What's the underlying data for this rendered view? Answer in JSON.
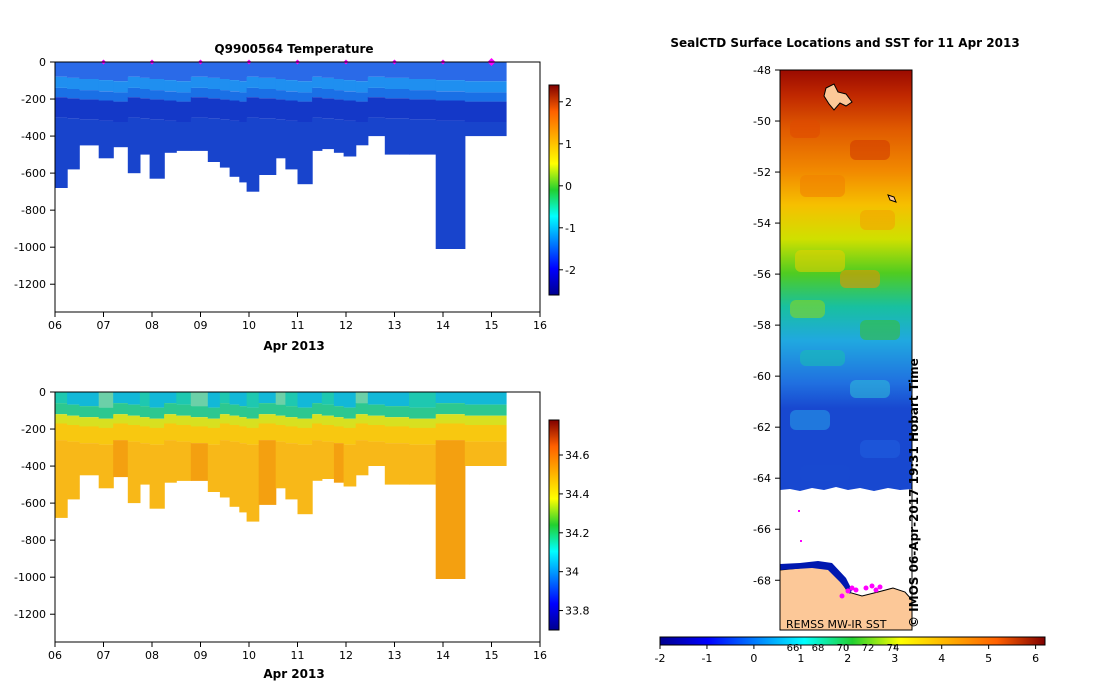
{
  "chart_data": [
    {
      "id": "temperature",
      "type": "heatmap",
      "title": "Q9900564  Temperature",
      "xlabel": "Apr 2013",
      "xlim": [
        6,
        16
      ],
      "x_ticks": [
        "06",
        "07",
        "08",
        "09",
        "10",
        "11",
        "12",
        "13",
        "14",
        "15",
        "16"
      ],
      "ylim": [
        -1350,
        0
      ],
      "y_ticks": [
        0,
        -200,
        -400,
        -600,
        -800,
        -1000,
        -1200
      ],
      "colorbar": {
        "min": -2.6,
        "max": 2.4,
        "ticks": [
          2,
          1,
          0,
          -1,
          -2
        ],
        "colormap": "jet"
      },
      "markers_x": [
        7,
        8,
        9,
        10,
        11,
        12,
        13,
        14,
        15
      ],
      "profiles": [
        {
          "x0": 6.0,
          "x1": 6.25,
          "depth": 680
        },
        {
          "x0": 6.25,
          "x1": 6.5,
          "depth": 580
        },
        {
          "x0": 6.5,
          "x1": 6.9,
          "depth": 450
        },
        {
          "x0": 6.9,
          "x1": 7.2,
          "depth": 520
        },
        {
          "x0": 7.2,
          "x1": 7.5,
          "depth": 460
        },
        {
          "x0": 7.5,
          "x1": 7.75,
          "depth": 600
        },
        {
          "x0": 7.75,
          "x1": 7.95,
          "depth": 500
        },
        {
          "x0": 7.95,
          "x1": 8.25,
          "depth": 630
        },
        {
          "x0": 8.25,
          "x1": 8.5,
          "depth": 490
        },
        {
          "x0": 8.5,
          "x1": 8.8,
          "depth": 480
        },
        {
          "x0": 8.8,
          "x1": 9.15,
          "depth": 480
        },
        {
          "x0": 9.15,
          "x1": 9.4,
          "depth": 540
        },
        {
          "x0": 9.4,
          "x1": 9.6,
          "depth": 570
        },
        {
          "x0": 9.6,
          "x1": 9.8,
          "depth": 620
        },
        {
          "x0": 9.8,
          "x1": 9.95,
          "depth": 650
        },
        {
          "x0": 9.95,
          "x1": 10.2,
          "depth": 700
        },
        {
          "x0": 10.2,
          "x1": 10.55,
          "depth": 610
        },
        {
          "x0": 10.55,
          "x1": 10.75,
          "depth": 520
        },
        {
          "x0": 10.75,
          "x1": 11.0,
          "depth": 580
        },
        {
          "x0": 11.0,
          "x1": 11.3,
          "depth": 660
        },
        {
          "x0": 11.3,
          "x1": 11.5,
          "depth": 480
        },
        {
          "x0": 11.5,
          "x1": 11.75,
          "depth": 470
        },
        {
          "x0": 11.75,
          "x1": 11.95,
          "depth": 490
        },
        {
          "x0": 11.95,
          "x1": 12.2,
          "depth": 510
        },
        {
          "x0": 12.2,
          "x1": 12.45,
          "depth": 450
        },
        {
          "x0": 12.45,
          "x1": 12.8,
          "depth": 400
        },
        {
          "x0": 12.8,
          "x1": 13.3,
          "depth": 500
        },
        {
          "x0": 13.3,
          "x1": 13.85,
          "depth": 500
        },
        {
          "x0": 13.85,
          "x1": 14.45,
          "depth": 1010
        },
        {
          "x0": 14.45,
          "x1": 15.3,
          "depth": 400
        }
      ]
    },
    {
      "id": "salinity",
      "type": "heatmap",
      "title": "",
      "xlabel": "Apr 2013",
      "xlim": [
        6,
        16
      ],
      "x_ticks": [
        "06",
        "07",
        "08",
        "09",
        "10",
        "11",
        "12",
        "13",
        "14",
        "15",
        "16"
      ],
      "ylim": [
        -1350,
        0
      ],
      "y_ticks": [
        0,
        -200,
        -400,
        -600,
        -800,
        -1000,
        -1200
      ],
      "colorbar": {
        "min": 33.7,
        "max": 34.78,
        "ticks": [
          34.6,
          34.4,
          34.2,
          34,
          33.8
        ],
        "tick_labels": [
          "34.6",
          "34.4",
          "34.2",
          "34",
          "33.8"
        ],
        "colormap": "jet"
      }
    },
    {
      "id": "sst_map",
      "type": "heatmap",
      "title": "SealCTD Surface Locations and SST for 11 Apr 2013",
      "ylim": [
        -69.95,
        -48
      ],
      "y_ticks": [
        -48,
        -50,
        -52,
        -54,
        -56,
        -58,
        -60,
        -62,
        -64,
        -66,
        -68
      ],
      "colorbar": {
        "min": -2,
        "max": 6.2,
        "ticks": [
          -2,
          -1,
          0,
          1,
          2,
          3,
          4,
          5,
          6
        ]
      },
      "overlay_ticks": [
        "66",
        "68",
        "70",
        "72",
        "74"
      ],
      "source_label": "REMSS MW-IR SST",
      "credit": "© IMOS 06-Apr-2017 19:31 Hobart Time"
    }
  ]
}
